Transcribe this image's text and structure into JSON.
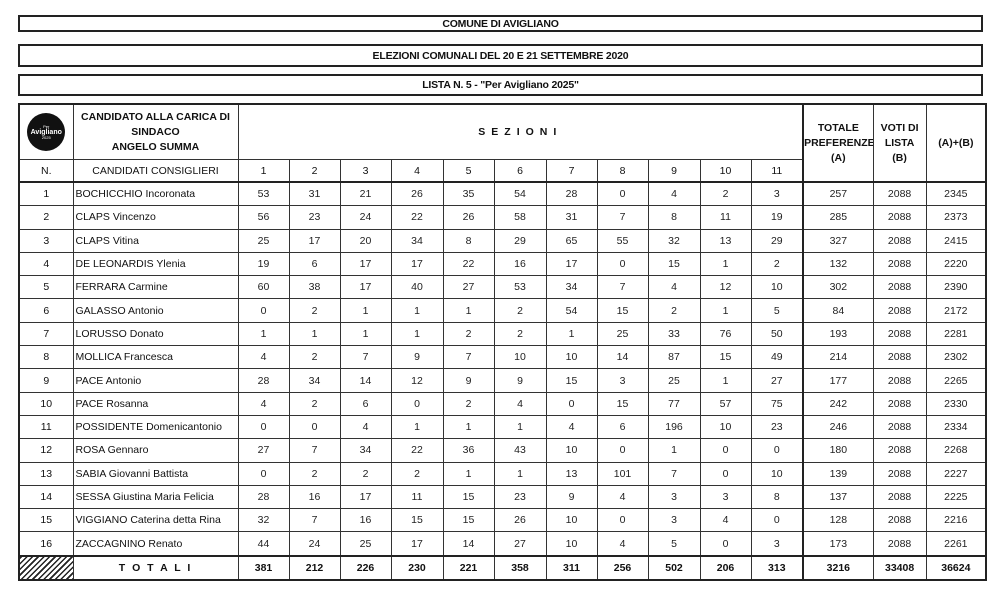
{
  "header": {
    "comune": "COMUNE DI AVIGLIANO",
    "elezioni": "ELEZIONI COMUNALI DEL 20 E 21 SETTEMBRE 2020",
    "lista": "LISTA N. 5 - \"Per Avigliano 2025\""
  },
  "logo": {
    "text": "Avigliano",
    "small_top": "Per",
    "small_bottom": "2025"
  },
  "table": {
    "sindaco_line1": "CANDIDATO ALLA CARICA DI",
    "sindaco_line2": "SINDACO",
    "sindaco_name": "ANGELO SUMMA",
    "sezioni_label": "SEZIONI",
    "totale_pref_line1": "TOTALE",
    "totale_pref_line2": "PREFERENZE",
    "totale_pref_line3": "(A)",
    "voti_lista_line1": "VOTI DI",
    "voti_lista_line2": "LISTA",
    "voti_lista_line3": "(B)",
    "sum_label": "(A)+(B)",
    "n_label": "N.",
    "candidati_label": "CANDIDATI CONSIGLIERI",
    "sections": [
      "1",
      "2",
      "3",
      "4",
      "5",
      "6",
      "7",
      "8",
      "9",
      "10",
      "11"
    ],
    "rows": [
      {
        "n": "1",
        "name": "BOCHICCHIO Incoronata",
        "votes": [
          53,
          31,
          21,
          26,
          35,
          54,
          28,
          0,
          4,
          2,
          3
        ],
        "a": 257,
        "b": 2088,
        "ab": 2345
      },
      {
        "n": "2",
        "name": "CLAPS Vincenzo",
        "votes": [
          56,
          23,
          24,
          22,
          26,
          58,
          31,
          7,
          8,
          11,
          19
        ],
        "a": 285,
        "b": 2088,
        "ab": 2373
      },
      {
        "n": "3",
        "name": "CLAPS Vitina",
        "votes": [
          25,
          17,
          20,
          34,
          8,
          29,
          65,
          55,
          32,
          13,
          29
        ],
        "a": 327,
        "b": 2088,
        "ab": 2415
      },
      {
        "n": "4",
        "name": "DE LEONARDIS Ylenia",
        "votes": [
          19,
          6,
          17,
          17,
          22,
          16,
          17,
          0,
          15,
          1,
          2
        ],
        "a": 132,
        "b": 2088,
        "ab": 2220
      },
      {
        "n": "5",
        "name": "FERRARA Carmine",
        "votes": [
          60,
          38,
          17,
          40,
          27,
          53,
          34,
          7,
          4,
          12,
          10
        ],
        "a": 302,
        "b": 2088,
        "ab": 2390
      },
      {
        "n": "6",
        "name": "GALASSO Antonio",
        "votes": [
          0,
          2,
          1,
          1,
          1,
          2,
          54,
          15,
          2,
          1,
          5
        ],
        "a": 84,
        "b": 2088,
        "ab": 2172
      },
      {
        "n": "7",
        "name": "LORUSSO Donato",
        "votes": [
          1,
          1,
          1,
          1,
          2,
          2,
          1,
          25,
          33,
          76,
          50
        ],
        "a": 193,
        "b": 2088,
        "ab": 2281
      },
      {
        "n": "8",
        "name": "MOLLICA Francesca",
        "votes": [
          4,
          2,
          7,
          9,
          7,
          10,
          10,
          14,
          87,
          15,
          49
        ],
        "a": 214,
        "b": 2088,
        "ab": 2302
      },
      {
        "n": "9",
        "name": "PACE Antonio",
        "votes": [
          28,
          34,
          14,
          12,
          9,
          9,
          15,
          3,
          25,
          1,
          27
        ],
        "a": 177,
        "b": 2088,
        "ab": 2265
      },
      {
        "n": "10",
        "name": "PACE Rosanna",
        "votes": [
          4,
          2,
          6,
          0,
          2,
          4,
          0,
          15,
          77,
          57,
          75
        ],
        "a": 242,
        "b": 2088,
        "ab": 2330
      },
      {
        "n": "11",
        "name": "POSSIDENTE Domenicantonio",
        "votes": [
          0,
          0,
          4,
          1,
          1,
          1,
          4,
          6,
          196,
          10,
          23
        ],
        "a": 246,
        "b": 2088,
        "ab": 2334
      },
      {
        "n": "12",
        "name": "ROSA Gennaro",
        "votes": [
          27,
          7,
          34,
          22,
          36,
          43,
          10,
          0,
          1,
          0,
          0
        ],
        "a": 180,
        "b": 2088,
        "ab": 2268
      },
      {
        "n": "13",
        "name": "SABIA Giovanni Battista",
        "votes": [
          0,
          2,
          2,
          2,
          1,
          1,
          13,
          101,
          7,
          0,
          10
        ],
        "a": 139,
        "b": 2088,
        "ab": 2227
      },
      {
        "n": "14",
        "name": "SESSA Giustina Maria Felicia",
        "votes": [
          28,
          16,
          17,
          11,
          15,
          23,
          9,
          4,
          3,
          3,
          8
        ],
        "a": 137,
        "b": 2088,
        "ab": 2225
      },
      {
        "n": "15",
        "name": "VIGGIANO Caterina detta Rina",
        "votes": [
          32,
          7,
          16,
          15,
          15,
          26,
          10,
          0,
          3,
          4,
          0
        ],
        "a": 128,
        "b": 2088,
        "ab": 2216
      },
      {
        "n": "16",
        "name": "ZACCAGNINO Renato",
        "votes": [
          44,
          24,
          25,
          17,
          14,
          27,
          10,
          4,
          5,
          0,
          3
        ],
        "a": 173,
        "b": 2088,
        "ab": 2261
      }
    ],
    "totals": {
      "label": "T O T A L I",
      "votes": [
        381,
        212,
        226,
        230,
        221,
        358,
        311,
        256,
        502,
        206,
        313
      ],
      "a": 3216,
      "b": 33408,
      "ab": 36624
    }
  }
}
